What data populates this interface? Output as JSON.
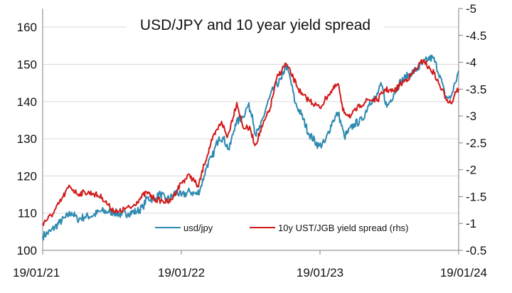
{
  "chart_data": {
    "type": "line",
    "title": "USD/JPY and 10 year yield spread",
    "x_tick_labels": [
      "19/01/21",
      "19/01/22",
      "19/01/23",
      "19/01/24"
    ],
    "x_range": [
      "2021-01-19",
      "2024-01-19"
    ],
    "y_left": {
      "ticks": [
        100,
        110,
        120,
        130,
        140,
        150,
        160
      ],
      "ylim": [
        100,
        165
      ]
    },
    "y_right": {
      "ticks": [
        "-5",
        "-4.5",
        "-4",
        "-3.5",
        "-3",
        "-2.5",
        "-2",
        "-1.5",
        "-1",
        "-0.5"
      ],
      "ylim": [
        -0.5,
        -5
      ],
      "inverted": true
    },
    "grid": "horizontal",
    "legend_position": "bottom-center",
    "series": [
      {
        "name": "usd/jpy",
        "axis": "left",
        "color": "#2e8ab0",
        "points": [
          [
            "2021-01-19",
            103.8
          ],
          [
            "2021-02-10",
            105.2
          ],
          [
            "2021-03-05",
            107.5
          ],
          [
            "2021-03-20",
            108.8
          ],
          [
            "2021-04-05",
            110.2
          ],
          [
            "2021-04-20",
            108.4
          ],
          [
            "2021-05-10",
            109.0
          ],
          [
            "2021-06-01",
            109.4
          ],
          [
            "2021-06-20",
            110.5
          ],
          [
            "2021-07-10",
            110.4
          ],
          [
            "2021-07-25",
            110.3
          ],
          [
            "2021-08-15",
            109.5
          ],
          [
            "2021-09-01",
            110.0
          ],
          [
            "2021-09-25",
            110.5
          ],
          [
            "2021-10-10",
            111.6
          ],
          [
            "2021-10-20",
            114.0
          ],
          [
            "2021-11-10",
            113.8
          ],
          [
            "2021-11-25",
            115.2
          ],
          [
            "2021-12-10",
            113.5
          ],
          [
            "2021-12-25",
            114.4
          ],
          [
            "2022-01-05",
            115.9
          ],
          [
            "2022-01-19",
            114.6
          ],
          [
            "2022-02-10",
            115.8
          ],
          [
            "2022-03-01",
            115.0
          ],
          [
            "2022-03-10",
            116.6
          ],
          [
            "2022-03-20",
            120.0
          ],
          [
            "2022-03-28",
            123.0
          ],
          [
            "2022-04-10",
            125.0
          ],
          [
            "2022-04-28",
            130.5
          ],
          [
            "2022-05-10",
            130.0
          ],
          [
            "2022-05-25",
            127.0
          ],
          [
            "2022-06-10",
            134.0
          ],
          [
            "2022-06-30",
            136.0
          ],
          [
            "2022-07-14",
            139.0
          ],
          [
            "2022-07-25",
            136.5
          ],
          [
            "2022-08-02",
            131.0
          ],
          [
            "2022-08-15",
            133.0
          ],
          [
            "2022-09-01",
            139.0
          ],
          [
            "2022-09-20",
            143.8
          ],
          [
            "2022-10-10",
            146.0
          ],
          [
            "2022-10-21",
            150.0
          ],
          [
            "2022-11-01",
            146.5
          ],
          [
            "2022-11-15",
            139.5
          ],
          [
            "2022-12-01",
            136.5
          ],
          [
            "2022-12-20",
            131.5
          ],
          [
            "2023-01-16",
            128.0
          ],
          [
            "2023-02-01",
            129.0
          ],
          [
            "2023-02-20",
            134.5
          ],
          [
            "2023-03-08",
            137.0
          ],
          [
            "2023-03-24",
            130.5
          ],
          [
            "2023-04-20",
            134.0
          ],
          [
            "2023-05-10",
            135.0
          ],
          [
            "2023-05-30",
            140.0
          ],
          [
            "2023-06-15",
            141.0
          ],
          [
            "2023-06-30",
            144.5
          ],
          [
            "2023-07-14",
            138.5
          ],
          [
            "2023-08-01",
            142.0
          ],
          [
            "2023-08-20",
            145.5
          ],
          [
            "2023-09-15",
            147.5
          ],
          [
            "2023-10-05",
            149.0
          ],
          [
            "2023-10-31",
            151.5
          ],
          [
            "2023-11-13",
            151.7
          ],
          [
            "2023-12-01",
            147.0
          ],
          [
            "2023-12-14",
            141.5
          ],
          [
            "2023-12-28",
            140.8
          ],
          [
            "2024-01-10",
            145.0
          ],
          [
            "2024-01-19",
            148.2
          ]
        ]
      },
      {
        "name": "10y UST/JGB yield spread (rhs)",
        "axis": "right",
        "color": "#d21a1a",
        "points": [
          [
            "2021-01-19",
            -1.0
          ],
          [
            "2021-02-15",
            -1.18
          ],
          [
            "2021-03-10",
            -1.45
          ],
          [
            "2021-03-31",
            -1.7
          ],
          [
            "2021-04-20",
            -1.55
          ],
          [
            "2021-05-10",
            -1.58
          ],
          [
            "2021-06-01",
            -1.56
          ],
          [
            "2021-06-25",
            -1.48
          ],
          [
            "2021-07-15",
            -1.3
          ],
          [
            "2021-08-05",
            -1.2
          ],
          [
            "2021-08-25",
            -1.28
          ],
          [
            "2021-09-10",
            -1.3
          ],
          [
            "2021-09-30",
            -1.45
          ],
          [
            "2021-10-20",
            -1.58
          ],
          [
            "2021-11-10",
            -1.45
          ],
          [
            "2021-11-30",
            -1.42
          ],
          [
            "2021-12-20",
            -1.4
          ],
          [
            "2022-01-19",
            -1.76
          ],
          [
            "2022-02-10",
            -1.9
          ],
          [
            "2022-03-05",
            -1.68
          ],
          [
            "2022-03-20",
            -2.1
          ],
          [
            "2022-04-10",
            -2.55
          ],
          [
            "2022-05-05",
            -2.9
          ],
          [
            "2022-05-20",
            -2.6
          ],
          [
            "2022-06-14",
            -3.25
          ],
          [
            "2022-06-30",
            -2.8
          ],
          [
            "2022-07-20",
            -2.75
          ],
          [
            "2022-08-01",
            -2.45
          ],
          [
            "2022-08-20",
            -2.8
          ],
          [
            "2022-09-10",
            -3.15
          ],
          [
            "2022-09-27",
            -3.7
          ],
          [
            "2022-10-21",
            -3.98
          ],
          [
            "2022-11-10",
            -3.7
          ],
          [
            "2022-12-01",
            -3.4
          ],
          [
            "2022-12-20",
            -3.3
          ],
          [
            "2023-01-19",
            -3.15
          ],
          [
            "2023-02-10",
            -3.4
          ],
          [
            "2023-03-08",
            -3.6
          ],
          [
            "2023-03-20",
            -3.1
          ],
          [
            "2023-04-10",
            -3.0
          ],
          [
            "2023-05-05",
            -3.2
          ],
          [
            "2023-05-25",
            -3.3
          ],
          [
            "2023-06-20",
            -3.3
          ],
          [
            "2023-07-10",
            -3.5
          ],
          [
            "2023-08-01",
            -3.45
          ],
          [
            "2023-08-20",
            -3.6
          ],
          [
            "2023-09-15",
            -3.75
          ],
          [
            "2023-10-19",
            -4.05
          ],
          [
            "2023-10-31",
            -3.9
          ],
          [
            "2023-11-15",
            -3.8
          ],
          [
            "2023-12-01",
            -3.55
          ],
          [
            "2023-12-20",
            -3.3
          ],
          [
            "2024-01-02",
            -3.25
          ],
          [
            "2024-01-10",
            -3.45
          ],
          [
            "2024-01-19",
            -3.5
          ]
        ]
      }
    ]
  }
}
